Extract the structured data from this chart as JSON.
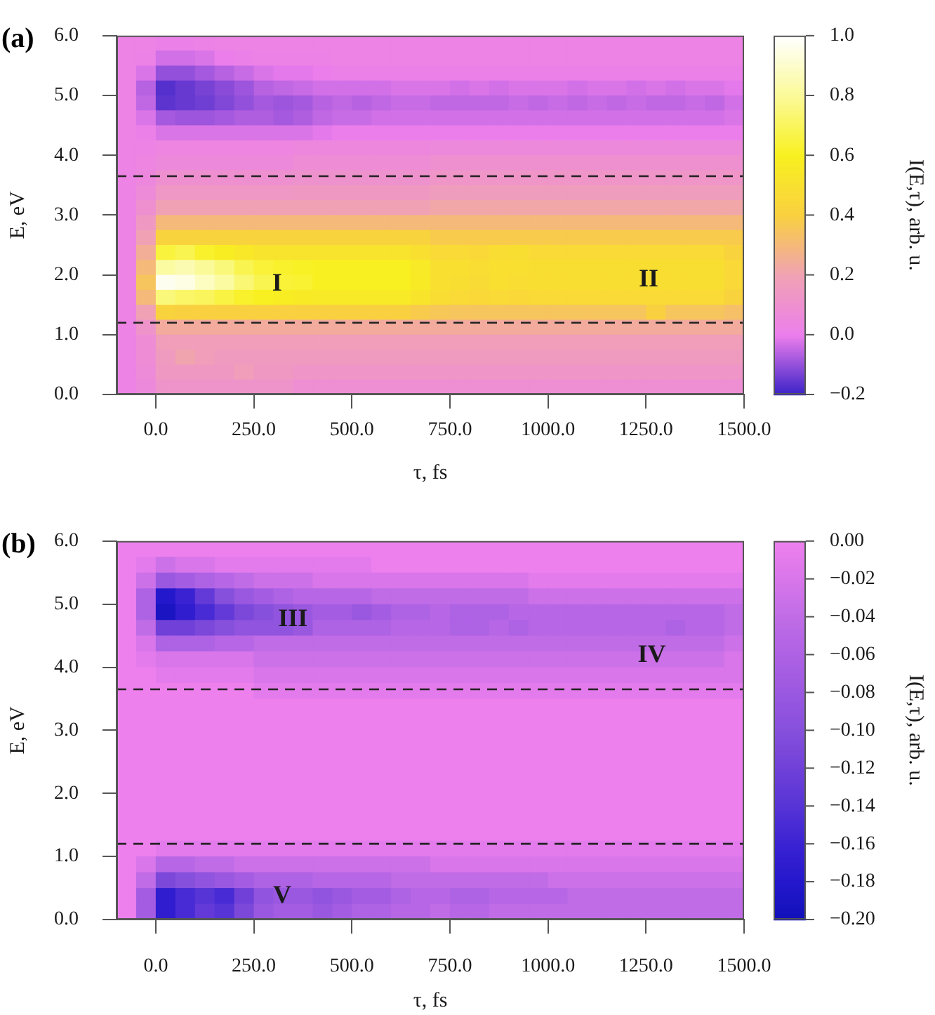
{
  "chart_data": [
    {
      "type": "heatmap",
      "title": "(a)",
      "xlabel": "τ, fs",
      "ylabel": "E, eV",
      "clabel": "I(E,τ), arb. u.",
      "x": [
        -75,
        -25,
        25,
        75,
        125,
        175,
        225,
        275,
        325,
        375,
        425,
        475,
        525,
        575,
        625,
        675,
        725,
        775,
        825,
        875,
        925,
        975,
        1025,
        1075,
        1125,
        1175,
        1225,
        1275,
        1325,
        1375,
        1425,
        1475
      ],
      "xlim": [
        -100,
        1500
      ],
      "xticks": [
        {
          "value": 0,
          "label": "0.0"
        },
        {
          "value": 250,
          "label": "250.0"
        },
        {
          "value": 500,
          "label": "500.0"
        },
        {
          "value": 750,
          "label": "750.0"
        },
        {
          "value": 1000,
          "label": "1000.0"
        },
        {
          "value": 1250,
          "label": "1250.0"
        },
        {
          "value": 1500,
          "label": "1500.0"
        }
      ],
      "ylim": [
        0,
        6
      ],
      "yticks": [
        {
          "value": 0,
          "label": "0.0"
        },
        {
          "value": 1,
          "label": "1.0"
        },
        {
          "value": 2,
          "label": "2.0"
        },
        {
          "value": 3,
          "label": "3.0"
        },
        {
          "value": 4,
          "label": "4.0"
        },
        {
          "value": 5,
          "label": "5.0"
        },
        {
          "value": 6,
          "label": "6.0"
        }
      ],
      "clim": [
        -0.2,
        1
      ],
      "cticks": [
        {
          "value": -0.2,
          "label": "−0.2"
        },
        {
          "value": 0,
          "label": "0.0"
        },
        0.2,
        0.4,
        0.6,
        0.8,
        {
          "value": 1,
          "label": "1.0"
        }
      ],
      "colors": [
        "#3a22c8",
        "#ec7eec",
        "#f0a2b4",
        "#f9d040",
        "#f8f020",
        "#fbfa98",
        "#ffffff"
      ],
      "ref_lines": [
        {
          "axis": "y",
          "value": 3.65,
          "color": "#222222",
          "line_style": "dashed"
        },
        {
          "axis": "y",
          "value": 1.2,
          "color": "#222222",
          "line_style": "dashed"
        }
      ],
      "annotations": [
        "I",
        "II"
      ],
      "cells": [
        [
          0.03,
          0.03,
          0.01,
          0.01,
          0.02,
          0.03,
          0.03,
          0.03,
          0.03,
          0.03,
          0.03,
          0.03,
          0.03,
          0.03,
          0.03,
          0.03,
          0.03,
          0.03,
          0.03,
          0.03,
          0.03,
          0.03,
          0.03,
          0.03,
          0.03,
          0.03,
          0.03,
          0.03,
          0.03,
          0.03,
          0.03,
          0.03
        ],
        [
          0.03,
          0.02,
          -0.03,
          -0.03,
          -0.02,
          0,
          0.01,
          0.02,
          0.02,
          0.02,
          0.02,
          0.03,
          0.03,
          0.03,
          0.03,
          0.03,
          0.03,
          0.03,
          0.03,
          0.03,
          0.03,
          0.03,
          0.03,
          0.03,
          0.03,
          0.03,
          0.03,
          0.03,
          0.03,
          0.03,
          0.03,
          0.03
        ],
        [
          0.03,
          -0.02,
          -0.1,
          -0.1,
          -0.08,
          -0.06,
          -0.04,
          -0.02,
          -0.01,
          -0.01,
          0,
          0.01,
          0.01,
          0.01,
          0.01,
          0.01,
          0.01,
          0.01,
          0.01,
          0.01,
          0.01,
          0.01,
          0.01,
          0.01,
          0.01,
          0.01,
          0.01,
          0.01,
          0.01,
          0.01,
          0.01,
          0.01
        ],
        [
          0.03,
          -0.06,
          -0.17,
          -0.15,
          -0.13,
          -0.11,
          -0.09,
          -0.06,
          -0.05,
          -0.04,
          -0.03,
          -0.03,
          -0.03,
          -0.03,
          -0.02,
          -0.02,
          -0.02,
          -0.03,
          -0.02,
          -0.03,
          -0.02,
          -0.02,
          -0.02,
          -0.03,
          -0.02,
          -0.02,
          -0.03,
          -0.02,
          -0.03,
          -0.02,
          -0.02,
          -0.01
        ],
        [
          0.03,
          -0.05,
          -0.16,
          -0.15,
          -0.14,
          -0.12,
          -0.1,
          -0.08,
          -0.09,
          -0.08,
          -0.06,
          -0.05,
          -0.06,
          -0.05,
          -0.04,
          -0.04,
          -0.05,
          -0.05,
          -0.05,
          -0.05,
          -0.04,
          -0.05,
          -0.04,
          -0.05,
          -0.04,
          -0.05,
          -0.04,
          -0.05,
          -0.05,
          -0.04,
          -0.05,
          -0.03
        ],
        [
          0.03,
          -0.02,
          -0.08,
          -0.09,
          -0.09,
          -0.08,
          -0.07,
          -0.07,
          -0.08,
          -0.07,
          -0.05,
          -0.04,
          -0.04,
          -0.03,
          -0.03,
          -0.03,
          -0.03,
          -0.03,
          -0.03,
          -0.03,
          -0.03,
          -0.03,
          -0.03,
          -0.03,
          -0.03,
          -0.03,
          -0.03,
          -0.03,
          -0.03,
          -0.03,
          -0.03,
          -0.02
        ],
        [
          0.03,
          0.01,
          -0.02,
          -0.02,
          -0.02,
          -0.02,
          -0.02,
          -0.02,
          -0.02,
          -0.02,
          -0.01,
          0,
          0,
          0,
          0,
          0,
          0,
          0,
          0,
          0,
          0,
          0,
          0,
          0,
          0,
          0,
          0,
          0,
          0,
          0,
          0,
          0
        ],
        [
          0.03,
          0.03,
          0.04,
          0.04,
          0.04,
          0.04,
          0.04,
          0.04,
          0.04,
          0.05,
          0.05,
          0.05,
          0.05,
          0.05,
          0.05,
          0.05,
          0.06,
          0.06,
          0.06,
          0.06,
          0.06,
          0.06,
          0.06,
          0.06,
          0.06,
          0.06,
          0.06,
          0.06,
          0.06,
          0.06,
          0.06,
          0.06
        ],
        [
          0.03,
          0.04,
          0.06,
          0.06,
          0.06,
          0.06,
          0.06,
          0.06,
          0.06,
          0.08,
          0.08,
          0.08,
          0.08,
          0.08,
          0.08,
          0.08,
          0.1,
          0.1,
          0.1,
          0.1,
          0.1,
          0.1,
          0.1,
          0.1,
          0.1,
          0.1,
          0.1,
          0.1,
          0.1,
          0.1,
          0.1,
          0.1
        ],
        [
          0.03,
          0.05,
          0.1,
          0.1,
          0.1,
          0.1,
          0.1,
          0.1,
          0.1,
          0.11,
          0.11,
          0.11,
          0.11,
          0.11,
          0.11,
          0.11,
          0.13,
          0.13,
          0.13,
          0.13,
          0.13,
          0.13,
          0.13,
          0.13,
          0.13,
          0.13,
          0.13,
          0.13,
          0.13,
          0.13,
          0.13,
          0.13
        ],
        [
          0.03,
          0.07,
          0.14,
          0.14,
          0.14,
          0.14,
          0.14,
          0.14,
          0.14,
          0.15,
          0.15,
          0.15,
          0.15,
          0.15,
          0.15,
          0.15,
          0.17,
          0.17,
          0.17,
          0.17,
          0.17,
          0.17,
          0.17,
          0.17,
          0.17,
          0.17,
          0.17,
          0.17,
          0.17,
          0.17,
          0.17,
          0.17
        ],
        [
          0.03,
          0.1,
          0.2,
          0.2,
          0.2,
          0.2,
          0.2,
          0.2,
          0.2,
          0.2,
          0.2,
          0.2,
          0.2,
          0.2,
          0.2,
          0.2,
          0.22,
          0.22,
          0.22,
          0.22,
          0.22,
          0.22,
          0.22,
          0.22,
          0.22,
          0.22,
          0.22,
          0.22,
          0.22,
          0.22,
          0.22,
          0.22
        ],
        [
          0.03,
          0.15,
          0.3,
          0.3,
          0.3,
          0.3,
          0.3,
          0.3,
          0.3,
          0.3,
          0.3,
          0.3,
          0.3,
          0.3,
          0.3,
          0.3,
          0.3,
          0.3,
          0.3,
          0.3,
          0.3,
          0.3,
          0.3,
          0.3,
          0.3,
          0.3,
          0.3,
          0.3,
          0.3,
          0.3,
          0.3,
          0.3
        ],
        [
          0.03,
          0.2,
          0.42,
          0.42,
          0.42,
          0.42,
          0.42,
          0.42,
          0.42,
          0.42,
          0.42,
          0.42,
          0.42,
          0.42,
          0.42,
          0.42,
          0.38,
          0.38,
          0.38,
          0.38,
          0.38,
          0.38,
          0.38,
          0.38,
          0.38,
          0.38,
          0.38,
          0.38,
          0.38,
          0.38,
          0.38,
          0.38
        ],
        [
          0.03,
          0.25,
          0.65,
          0.68,
          0.62,
          0.58,
          0.55,
          0.52,
          0.52,
          0.52,
          0.52,
          0.52,
          0.52,
          0.52,
          0.52,
          0.5,
          0.46,
          0.46,
          0.45,
          0.48,
          0.49,
          0.46,
          0.46,
          0.46,
          0.46,
          0.46,
          0.46,
          0.46,
          0.46,
          0.46,
          0.46,
          0.42
        ],
        [
          0.03,
          0.3,
          0.82,
          0.85,
          0.8,
          0.75,
          0.68,
          0.64,
          0.62,
          0.61,
          0.6,
          0.6,
          0.6,
          0.6,
          0.6,
          0.56,
          0.5,
          0.5,
          0.48,
          0.5,
          0.5,
          0.49,
          0.49,
          0.49,
          0.49,
          0.49,
          0.49,
          0.49,
          0.49,
          0.49,
          0.49,
          0.45
        ],
        [
          0.03,
          0.35,
          0.97,
          0.95,
          0.88,
          0.82,
          0.74,
          0.68,
          0.64,
          0.63,
          0.6,
          0.6,
          0.6,
          0.6,
          0.6,
          0.57,
          0.5,
          0.49,
          0.47,
          0.5,
          0.48,
          0.49,
          0.49,
          0.49,
          0.49,
          0.49,
          0.49,
          0.49,
          0.49,
          0.49,
          0.49,
          0.45
        ],
        [
          0.03,
          0.3,
          0.75,
          0.72,
          0.7,
          0.66,
          0.62,
          0.6,
          0.58,
          0.57,
          0.56,
          0.56,
          0.56,
          0.56,
          0.56,
          0.53,
          0.48,
          0.46,
          0.45,
          0.46,
          0.45,
          0.46,
          0.46,
          0.46,
          0.46,
          0.46,
          0.46,
          0.46,
          0.46,
          0.46,
          0.46,
          0.42
        ],
        [
          0.03,
          0.2,
          0.42,
          0.4,
          0.4,
          0.4,
          0.4,
          0.4,
          0.4,
          0.4,
          0.4,
          0.4,
          0.4,
          0.4,
          0.4,
          0.38,
          0.36,
          0.35,
          0.35,
          0.35,
          0.35,
          0.35,
          0.35,
          0.35,
          0.35,
          0.35,
          0.35,
          0.4,
          0.35,
          0.35,
          0.35,
          0.33
        ],
        [
          0.03,
          0.12,
          0.24,
          0.24,
          0.24,
          0.24,
          0.24,
          0.24,
          0.24,
          0.24,
          0.24,
          0.24,
          0.24,
          0.24,
          0.24,
          0.24,
          0.24,
          0.24,
          0.24,
          0.24,
          0.24,
          0.24,
          0.24,
          0.24,
          0.24,
          0.24,
          0.24,
          0.24,
          0.24,
          0.24,
          0.24,
          0.24
        ],
        [
          0.03,
          0.08,
          0.18,
          0.18,
          0.18,
          0.18,
          0.18,
          0.18,
          0.18,
          0.18,
          0.18,
          0.18,
          0.18,
          0.18,
          0.18,
          0.18,
          0.18,
          0.18,
          0.18,
          0.18,
          0.18,
          0.18,
          0.18,
          0.18,
          0.18,
          0.18,
          0.18,
          0.18,
          0.18,
          0.18,
          0.18,
          0.18
        ],
        [
          0.03,
          0.08,
          0.16,
          0.21,
          0.18,
          0.16,
          0.16,
          0.16,
          0.16,
          0.16,
          0.16,
          0.16,
          0.16,
          0.16,
          0.16,
          0.16,
          0.16,
          0.16,
          0.16,
          0.16,
          0.16,
          0.16,
          0.16,
          0.16,
          0.16,
          0.16,
          0.16,
          0.16,
          0.16,
          0.16,
          0.16,
          0.16
        ],
        [
          0.03,
          0.07,
          0.15,
          0.15,
          0.15,
          0.15,
          0.18,
          0.15,
          0.15,
          0.13,
          0.13,
          0.13,
          0.13,
          0.13,
          0.13,
          0.13,
          0.13,
          0.13,
          0.13,
          0.13,
          0.13,
          0.13,
          0.13,
          0.13,
          0.13,
          0.13,
          0.13,
          0.13,
          0.13,
          0.13,
          0.13,
          0.13
        ],
        [
          0.03,
          0.06,
          0.12,
          0.12,
          0.12,
          0.12,
          0.12,
          0.12,
          0.12,
          0.09,
          0.09,
          0.09,
          0.09,
          0.09,
          0.09,
          0.09,
          0.09,
          0.09,
          0.09,
          0.09,
          0.09,
          0.09,
          0.09,
          0.09,
          0.09,
          0.09,
          0.09,
          0.09,
          0.09,
          0.09,
          0.09,
          0.09
        ]
      ]
    },
    {
      "type": "heatmap",
      "title": "(b)",
      "xlabel": "τ, fs",
      "ylabel": "E, eV",
      "clabel": "I(E,τ), arb. u.",
      "x": [
        -75,
        -25,
        25,
        75,
        125,
        175,
        225,
        275,
        325,
        375,
        425,
        475,
        525,
        575,
        625,
        675,
        725,
        775,
        825,
        875,
        925,
        975,
        1025,
        1075,
        1125,
        1175,
        1225,
        1275,
        1325,
        1375,
        1425,
        1475
      ],
      "xlim": [
        -100,
        1500
      ],
      "xticks": [
        {
          "value": 0,
          "label": "0.0"
        },
        {
          "value": 250,
          "label": "250.0"
        },
        {
          "value": 500,
          "label": "500.0"
        },
        {
          "value": 750,
          "label": "750.0"
        },
        {
          "value": 1000,
          "label": "1000.0"
        },
        {
          "value": 1250,
          "label": "1250.0"
        },
        {
          "value": 1500,
          "label": "1500.0"
        }
      ],
      "ylim": [
        0,
        6
      ],
      "yticks": [
        {
          "value": 0,
          "label": "0.0"
        },
        {
          "value": 1,
          "label": "1.0"
        },
        {
          "value": 2,
          "label": "2.0"
        },
        {
          "value": 3,
          "label": "3.0"
        },
        {
          "value": 4,
          "label": "4.0"
        },
        {
          "value": 5,
          "label": "5.0"
        },
        {
          "value": 6,
          "label": "6.0"
        }
      ],
      "clim": [
        -0.2,
        0
      ],
      "cticks": [
        {
          "value": -0.2,
          "label": "−0.20"
        },
        {
          "value": -0.18,
          "label": "−0.18"
        },
        {
          "value": -0.16,
          "label": "−0.16"
        },
        {
          "value": -0.14,
          "label": "−0.14"
        },
        {
          "value": -0.12,
          "label": "−0.12"
        },
        {
          "value": -0.1,
          "label": "−0.10"
        },
        {
          "value": -0.08,
          "label": "−0.08"
        },
        {
          "value": -0.06,
          "label": "−0.06"
        },
        {
          "value": -0.04,
          "label": "−0.04"
        },
        {
          "value": -0.02,
          "label": "−0.02"
        },
        {
          "value": 0,
          "label": "0.00"
        }
      ],
      "colors": [
        "#1010b8",
        "#2418cc",
        "#3a22d2",
        "#5634d6",
        "#7040d8",
        "#8650dc",
        "#9a58e0",
        "#ae62e4",
        "#c06ce6",
        "#d876ea",
        "#ee80ee"
      ],
      "ref_lines": [
        {
          "axis": "y",
          "value": 3.65,
          "color": "#222222",
          "line_style": "dashed"
        },
        {
          "axis": "y",
          "value": 1.2,
          "color": "#222222",
          "line_style": "dashed"
        }
      ],
      "annotations": [
        "III",
        "IV",
        "V"
      ],
      "cells": [
        [
          0,
          0,
          0,
          0,
          0,
          0,
          0,
          0,
          0,
          0,
          0,
          0,
          0,
          0,
          0,
          0,
          0,
          0,
          0,
          0,
          0,
          0,
          0,
          0,
          0,
          0,
          0,
          0,
          0,
          0,
          0,
          0
        ],
        [
          0,
          -0.01,
          -0.03,
          -0.02,
          -0.02,
          -0.01,
          -0.01,
          -0.01,
          -0.01,
          -0.01,
          -0.01,
          -0.01,
          -0.01,
          0,
          0,
          0,
          0,
          0,
          0,
          0,
          0,
          0,
          0,
          0,
          0,
          0,
          0,
          0,
          0,
          0,
          0,
          0
        ],
        [
          0,
          -0.03,
          -0.08,
          -0.07,
          -0.06,
          -0.05,
          -0.04,
          -0.03,
          -0.03,
          -0.03,
          -0.02,
          -0.02,
          -0.02,
          -0.02,
          -0.02,
          -0.02,
          -0.02,
          -0.02,
          -0.02,
          -0.02,
          -0.02,
          -0.01,
          -0.01,
          -0.01,
          -0.01,
          -0.01,
          -0.01,
          -0.01,
          -0.01,
          -0.01,
          -0.01,
          -0.01
        ],
        [
          0,
          -0.06,
          -0.18,
          -0.16,
          -0.13,
          -0.1,
          -0.08,
          -0.07,
          -0.06,
          -0.05,
          -0.05,
          -0.05,
          -0.05,
          -0.04,
          -0.04,
          -0.04,
          -0.04,
          -0.04,
          -0.04,
          -0.04,
          -0.04,
          -0.03,
          -0.03,
          -0.03,
          -0.03,
          -0.03,
          -0.03,
          -0.03,
          -0.03,
          -0.03,
          -0.03,
          -0.03
        ],
        [
          0,
          -0.06,
          -0.19,
          -0.17,
          -0.15,
          -0.13,
          -0.11,
          -0.1,
          -0.09,
          -0.08,
          -0.07,
          -0.07,
          -0.08,
          -0.07,
          -0.06,
          -0.06,
          -0.05,
          -0.06,
          -0.06,
          -0.06,
          -0.05,
          -0.05,
          -0.05,
          -0.05,
          -0.05,
          -0.05,
          -0.05,
          -0.05,
          -0.05,
          -0.05,
          -0.05,
          -0.04
        ],
        [
          0,
          -0.04,
          -0.12,
          -0.12,
          -0.11,
          -0.1,
          -0.09,
          -0.09,
          -0.09,
          -0.08,
          -0.06,
          -0.06,
          -0.06,
          -0.06,
          -0.05,
          -0.05,
          -0.05,
          -0.06,
          -0.06,
          -0.05,
          -0.06,
          -0.05,
          -0.05,
          -0.05,
          -0.05,
          -0.05,
          -0.05,
          -0.05,
          -0.06,
          -0.05,
          -0.05,
          -0.04
        ],
        [
          0,
          -0.02,
          -0.06,
          -0.06,
          -0.06,
          -0.05,
          -0.05,
          -0.04,
          -0.04,
          -0.04,
          -0.04,
          -0.04,
          -0.04,
          -0.04,
          -0.04,
          -0.04,
          -0.04,
          -0.04,
          -0.04,
          -0.04,
          -0.04,
          -0.04,
          -0.04,
          -0.04,
          -0.04,
          -0.04,
          -0.04,
          -0.04,
          -0.04,
          -0.04,
          -0.04,
          -0.03
        ],
        [
          0,
          -0.01,
          -0.02,
          -0.02,
          -0.02,
          -0.02,
          -0.02,
          -0.03,
          -0.03,
          -0.03,
          -0.03,
          -0.03,
          -0.03,
          -0.03,
          -0.03,
          -0.03,
          -0.03,
          -0.03,
          -0.03,
          -0.03,
          -0.03,
          -0.03,
          -0.03,
          -0.03,
          -0.03,
          -0.03,
          -0.03,
          -0.03,
          -0.03,
          -0.03,
          -0.03,
          -0.02
        ],
        [
          0,
          0,
          -0.01,
          -0.01,
          -0.01,
          -0.01,
          -0.01,
          -0.02,
          -0.02,
          -0.02,
          -0.02,
          -0.02,
          -0.02,
          -0.02,
          -0.02,
          -0.02,
          -0.02,
          -0.02,
          -0.02,
          -0.02,
          -0.02,
          -0.02,
          -0.02,
          -0.02,
          -0.02,
          -0.02,
          -0.02,
          -0.02,
          -0.02,
          -0.02,
          -0.02,
          -0.02
        ],
        [
          0,
          0,
          0,
          0,
          0,
          0,
          0,
          -0.01,
          -0.01,
          -0.01,
          -0.01,
          -0.01,
          -0.01,
          -0.01,
          -0.01,
          -0.01,
          -0.01,
          -0.01,
          -0.01,
          -0.01,
          -0.01,
          -0.01,
          -0.01,
          -0.01,
          -0.01,
          -0.01,
          -0.01,
          -0.01,
          -0.01,
          -0.01,
          -0.01,
          -0.01
        ],
        [
          0,
          0,
          0,
          0,
          0,
          0,
          0,
          0,
          0,
          0,
          0,
          0,
          0,
          0,
          0,
          0,
          0,
          0,
          0,
          0,
          0,
          0,
          0,
          0,
          0,
          0,
          0,
          0,
          0,
          0,
          0,
          0
        ],
        [
          0,
          0,
          0,
          0,
          0,
          0,
          0,
          0,
          0,
          0,
          0,
          0,
          0,
          0,
          0,
          0,
          0,
          0,
          0,
          0,
          0,
          0,
          0,
          0,
          0,
          0,
          0,
          0,
          0,
          0,
          0,
          0
        ],
        [
          0,
          0,
          0,
          0,
          0,
          0,
          0,
          0,
          0,
          0,
          0,
          0,
          0,
          0,
          0,
          0,
          0,
          0,
          0,
          0,
          0,
          0,
          0,
          0,
          0,
          0,
          0,
          0,
          0,
          0,
          0,
          0
        ],
        [
          0,
          0,
          0,
          0,
          0,
          0,
          0,
          0,
          0,
          0,
          0,
          0,
          0,
          0,
          0,
          0,
          0,
          0,
          0,
          0,
          0,
          0,
          0,
          0,
          0,
          0,
          0,
          0,
          0,
          0,
          0,
          0
        ],
        [
          0,
          0,
          0,
          0,
          0,
          0,
          0,
          0,
          0,
          0,
          0,
          0,
          0,
          0,
          0,
          0,
          0,
          0,
          0,
          0,
          0,
          0,
          0,
          0,
          0,
          0,
          0,
          0,
          0,
          0,
          0,
          0
        ],
        [
          0,
          0,
          0,
          0,
          0,
          0,
          0,
          0,
          0,
          0,
          0,
          0,
          0,
          0,
          0,
          0,
          0,
          0,
          0,
          0,
          0,
          0,
          0,
          0,
          0,
          0,
          0,
          0,
          0,
          0,
          0,
          0
        ],
        [
          0,
          0,
          0,
          0,
          0,
          0,
          0,
          0,
          0,
          0,
          0,
          0,
          0,
          0,
          0,
          0,
          0,
          0,
          0,
          0,
          0,
          0,
          0,
          0,
          0,
          0,
          0,
          0,
          0,
          0,
          0,
          0
        ],
        [
          0,
          0,
          0,
          0,
          0,
          0,
          0,
          0,
          0,
          0,
          0,
          0,
          0,
          0,
          0,
          0,
          0,
          0,
          0,
          0,
          0,
          0,
          0,
          0,
          0,
          0,
          0,
          0,
          0,
          0,
          0,
          0
        ],
        [
          0,
          0,
          0,
          0,
          0,
          0,
          0,
          0,
          0,
          0,
          0,
          0,
          0,
          0,
          0,
          0,
          0,
          0,
          0,
          0,
          0,
          0,
          0,
          0,
          0,
          0,
          0,
          0,
          0,
          0,
          0,
          0
        ],
        [
          0,
          0,
          -0.01,
          -0.01,
          -0.01,
          -0.01,
          -0.01,
          -0.01,
          -0.01,
          -0.01,
          -0.01,
          -0.01,
          -0.01,
          -0.01,
          -0.01,
          -0.01,
          -0.01,
          -0.01,
          -0.01,
          -0.01,
          -0.01,
          -0.01,
          -0.01,
          -0.01,
          -0.01,
          -0.01,
          -0.01,
          -0.01,
          -0.01,
          -0.01,
          -0.01,
          -0.01
        ],
        [
          0,
          -0.02,
          -0.05,
          -0.05,
          -0.04,
          -0.04,
          -0.03,
          -0.03,
          -0.03,
          -0.03,
          -0.03,
          -0.03,
          -0.03,
          -0.03,
          -0.03,
          -0.03,
          -0.02,
          -0.02,
          -0.02,
          -0.02,
          -0.02,
          -0.02,
          -0.02,
          -0.02,
          -0.02,
          -0.02,
          -0.02,
          -0.02,
          -0.02,
          -0.02,
          -0.02,
          -0.02
        ],
        [
          0,
          -0.04,
          -0.11,
          -0.1,
          -0.09,
          -0.08,
          -0.07,
          -0.06,
          -0.06,
          -0.06,
          -0.05,
          -0.05,
          -0.05,
          -0.05,
          -0.04,
          -0.04,
          -0.04,
          -0.04,
          -0.04,
          -0.04,
          -0.04,
          -0.04,
          -0.03,
          -0.03,
          -0.03,
          -0.03,
          -0.03,
          -0.03,
          -0.03,
          -0.03,
          -0.03,
          -0.03
        ],
        [
          0,
          -0.07,
          -0.17,
          -0.15,
          -0.14,
          -0.15,
          -0.12,
          -0.09,
          -0.08,
          -0.08,
          -0.09,
          -0.08,
          -0.07,
          -0.07,
          -0.06,
          -0.05,
          -0.05,
          -0.06,
          -0.06,
          -0.05,
          -0.05,
          -0.05,
          -0.05,
          -0.04,
          -0.04,
          -0.04,
          -0.04,
          -0.04,
          -0.04,
          -0.04,
          -0.04,
          -0.04
        ],
        [
          0,
          -0.07,
          -0.17,
          -0.15,
          -0.13,
          -0.14,
          -0.11,
          -0.08,
          -0.07,
          -0.07,
          -0.08,
          -0.07,
          -0.06,
          -0.06,
          -0.05,
          -0.05,
          -0.04,
          -0.05,
          -0.05,
          -0.04,
          -0.04,
          -0.04,
          -0.04,
          -0.04,
          -0.04,
          -0.04,
          -0.04,
          -0.04,
          -0.04,
          -0.04,
          -0.04,
          -0.04
        ]
      ]
    }
  ]
}
